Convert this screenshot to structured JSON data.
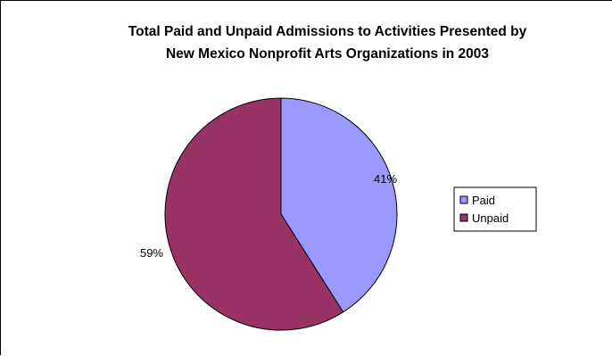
{
  "chart_data": {
    "type": "pie",
    "title_lines": [
      "Total Paid and Unpaid Admissions to Activities Presented by",
      "New Mexico Nonprofit Arts Organizations in 2003"
    ],
    "categories": [
      "Paid",
      "Unpaid"
    ],
    "values": [
      41,
      59
    ],
    "labels": [
      "41%",
      "59%"
    ],
    "colors": [
      "#9999ff",
      "#993366"
    ],
    "legend_position": "right"
  }
}
